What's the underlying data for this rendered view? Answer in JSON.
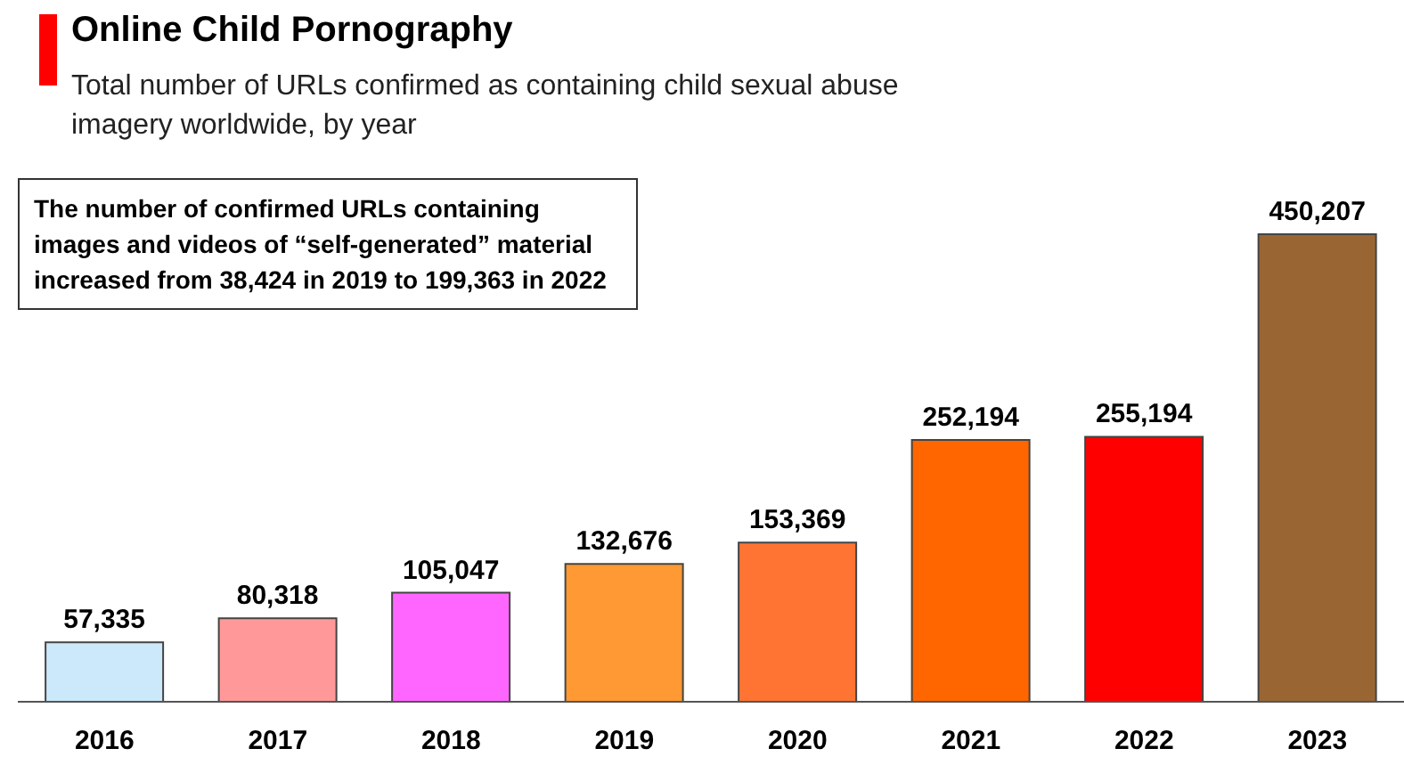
{
  "chart_data": {
    "type": "bar",
    "title": "Online Child Pornography",
    "subtitle": "Total number of URLs confirmed as containing child sexual abuse imagery worldwide, by year",
    "categories": [
      "2016",
      "2017",
      "2018",
      "2019",
      "2020",
      "2021",
      "2022",
      "2023"
    ],
    "values": [
      57335,
      80318,
      105047,
      132676,
      153369,
      252194,
      255194,
      450207
    ],
    "colors": [
      "#cce8fb",
      "#ff9999",
      "#ff66ff",
      "#ff9933",
      "#ff7433",
      "#ff6600",
      "#ff0000",
      "#996633"
    ],
    "value_labels": [
      "57,335",
      "80,318",
      "105,047",
      "132,676",
      "153,369",
      "252,194",
      "255,194",
      "450,207"
    ],
    "annotations": [
      "The number of confirmed URLs containing images and videos of “self-generated” material increased from 38,424 in 2019 to 199,363 in 2022"
    ],
    "grid": false,
    "legend": false
  }
}
